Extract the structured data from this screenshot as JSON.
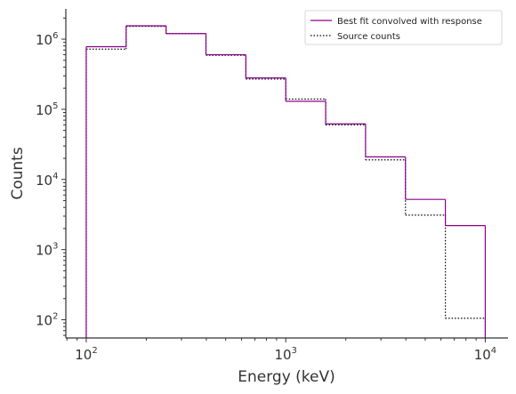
{
  "chart_data": {
    "type": "line",
    "style": "step",
    "xlabel": "Energy (keV)",
    "ylabel": "Counts",
    "xscale": "log",
    "yscale": "log",
    "xlim": [
      79,
      13000
    ],
    "ylim": [
      55,
      2700000
    ],
    "grid": false,
    "legend_position": "top-right",
    "x_ticks": [
      {
        "value": 100,
        "base": "10",
        "exp": "2"
      },
      {
        "value": 1000,
        "base": "10",
        "exp": "3"
      },
      {
        "value": 10000,
        "base": "10",
        "exp": "4"
      }
    ],
    "y_ticks": [
      {
        "value": 100,
        "base": "10",
        "exp": "2"
      },
      {
        "value": 1000,
        "base": "10",
        "exp": "3"
      },
      {
        "value": 10000,
        "base": "10",
        "exp": "4"
      },
      {
        "value": 100000,
        "base": "10",
        "exp": "5"
      },
      {
        "value": 1000000,
        "base": "10",
        "exp": "6"
      }
    ],
    "bin_edges": [
      100,
      158.5,
      251.2,
      398.1,
      631,
      1000,
      1585,
      2512,
      3981,
      6310,
      10000
    ],
    "series": [
      {
        "name": "Best fit convolved with response",
        "color": "#8b008b",
        "linestyle": "solid",
        "values": [
          780000,
          1550000,
          1200000,
          600000,
          280000,
          130000,
          62000,
          21000,
          5200,
          2200
        ]
      },
      {
        "name": "Source counts",
        "color": "#000000",
        "linestyle": "dotted",
        "values": [
          720000,
          1520000,
          1200000,
          590000,
          270000,
          140000,
          60000,
          19000,
          3100,
          105
        ]
      }
    ]
  }
}
